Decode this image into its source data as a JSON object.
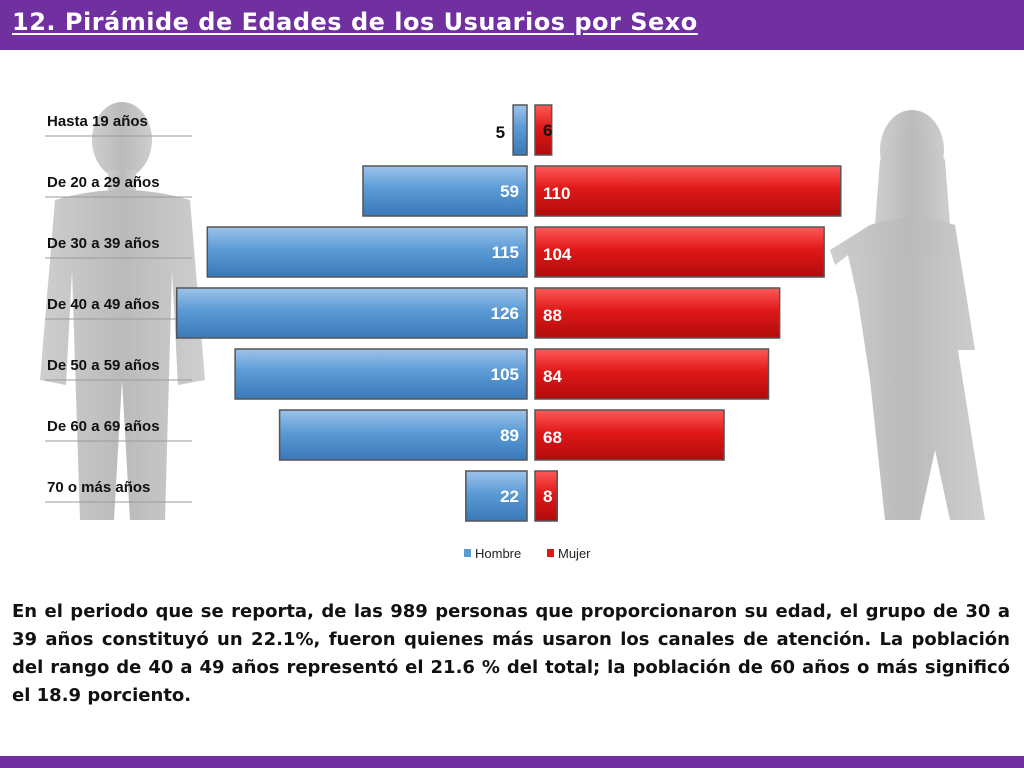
{
  "title": "12. Pirámide de Edades de los Usuarios por Sexo",
  "colors": {
    "accent": "#7030a0",
    "hombre": "#5b9bd5",
    "mujer": "#e01818"
  },
  "chart_data": {
    "type": "bar",
    "orientation": "horizontal-pyramid",
    "categories": [
      "Hasta 19 años",
      "De 20 a 29 años",
      "De 30 a 39 años",
      "De 40 a 49 años",
      "De 50 a 59 años",
      "De 60 a 69 años",
      "70 o más años"
    ],
    "series": [
      {
        "name": "Hombre",
        "values": [
          5,
          59,
          115,
          126,
          105,
          89,
          22
        ]
      },
      {
        "name": "Mujer",
        "values": [
          6,
          110,
          104,
          88,
          84,
          68,
          8
        ]
      }
    ],
    "legend": [
      "Hombre",
      "Mujer"
    ],
    "legend_position": "bottom"
  },
  "paragraph": "En el periodo que se reporta, de las 989 personas que proporcionaron su edad, el grupo de 30 a 39 años constituyó un 22.1%, fueron quienes más usaron los canales de atención. La población del rango de 40 a 49 años representó el 21.6 % del total; la población de 60 años o más significó el 18.9 porciento."
}
